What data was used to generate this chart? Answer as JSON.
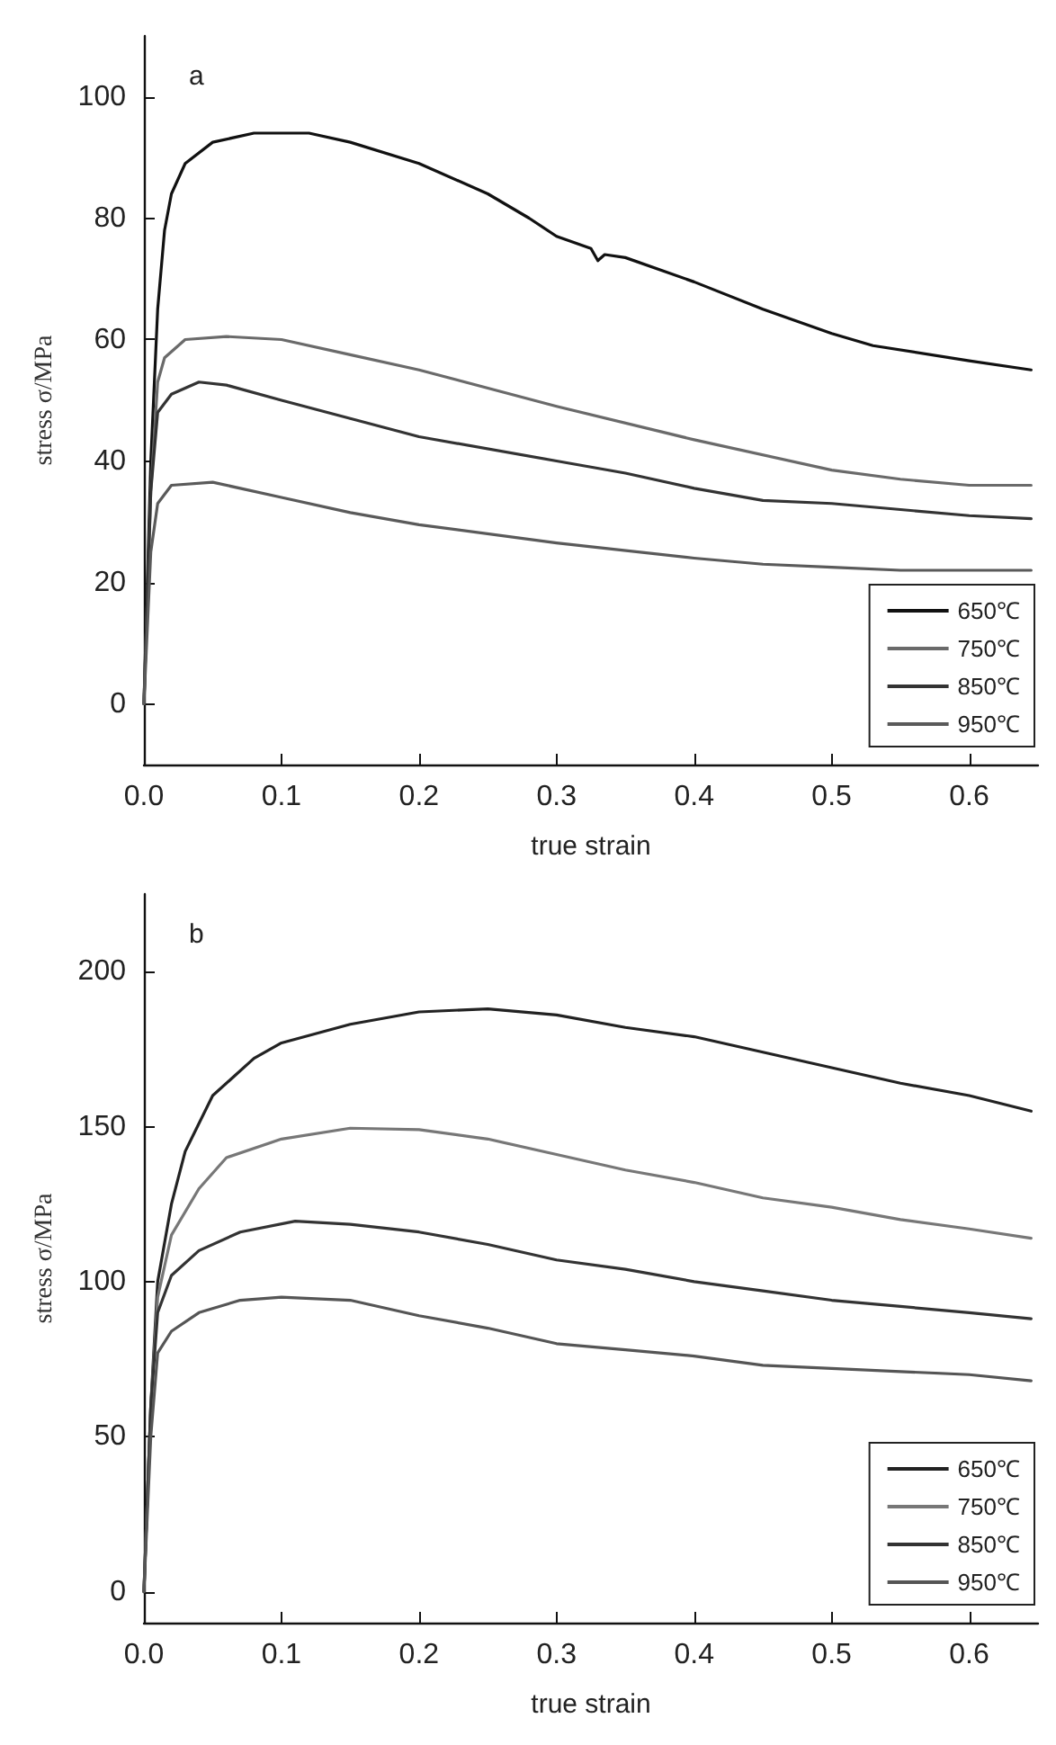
{
  "chart_data": [
    {
      "type": "line",
      "title": "a",
      "xlabel": "true strain",
      "ylabel": "stress σ/MPa",
      "xlim": [
        0,
        0.65
      ],
      "ylim": [
        -10,
        110
      ],
      "xticks": [
        {
          "value": 0,
          "label": "0.0"
        },
        0.1,
        0.2,
        0.3,
        0.4,
        0.5,
        0.6
      ],
      "yticks": [
        0,
        20,
        40,
        60,
        80,
        100
      ],
      "legend": "bottom right",
      "series": [
        {
          "name": "650℃",
          "color": "#111111",
          "x": [
            0,
            0.005,
            0.01,
            0.015,
            0.02,
            0.03,
            0.05,
            0.08,
            0.12,
            0.15,
            0.2,
            0.25,
            0.28,
            0.3,
            0.325,
            0.33,
            0.335,
            0.35,
            0.4,
            0.45,
            0.5,
            0.53,
            0.6,
            0.645
          ],
          "values": [
            0,
            40,
            65,
            78,
            84,
            89,
            92.5,
            94,
            94,
            92.5,
            89,
            84,
            80,
            77,
            75,
            73,
            74,
            73.5,
            69.5,
            65,
            61,
            59,
            56.5,
            55
          ]
        },
        {
          "name": "750℃",
          "color": "#6a6a6a",
          "x": [
            0,
            0.005,
            0.01,
            0.015,
            0.03,
            0.06,
            0.1,
            0.15,
            0.2,
            0.3,
            0.4,
            0.5,
            0.55,
            0.6,
            0.645
          ],
          "values": [
            0,
            35,
            53,
            57,
            60,
            60.5,
            60,
            57.5,
            55,
            49,
            43.5,
            38.5,
            37,
            36,
            36
          ]
        },
        {
          "name": "850℃",
          "color": "#333333",
          "x": [
            0,
            0.005,
            0.01,
            0.02,
            0.04,
            0.06,
            0.1,
            0.15,
            0.2,
            0.3,
            0.35,
            0.4,
            0.45,
            0.5,
            0.55,
            0.6,
            0.645
          ],
          "values": [
            0,
            35,
            48,
            51,
            53,
            52.5,
            50,
            47,
            44,
            40,
            38,
            35.5,
            33.5,
            33,
            32,
            31,
            30.5
          ]
        },
        {
          "name": "950℃",
          "color": "#5a5a5a",
          "x": [
            0,
            0.005,
            0.01,
            0.02,
            0.05,
            0.1,
            0.15,
            0.2,
            0.3,
            0.4,
            0.45,
            0.5,
            0.55,
            0.6,
            0.645
          ],
          "values": [
            0,
            25,
            33,
            36,
            36.5,
            34,
            31.5,
            29.5,
            26.5,
            24,
            23,
            22.5,
            22,
            22,
            22
          ]
        }
      ]
    },
    {
      "type": "line",
      "title": "b",
      "xlabel": "true strain",
      "ylabel": "stress σ/MPa",
      "xlim": [
        0,
        0.65
      ],
      "ylim": [
        -10,
        225
      ],
      "xticks": [
        {
          "value": 0,
          "label": "0.0"
        },
        0.1,
        0.2,
        0.3,
        0.4,
        0.5,
        0.6
      ],
      "yticks": [
        0,
        50,
        100,
        150,
        200
      ],
      "legend": "bottom right",
      "series": [
        {
          "name": "650℃",
          "color": "#222222",
          "x": [
            0,
            0.005,
            0.01,
            0.02,
            0.03,
            0.05,
            0.08,
            0.1,
            0.15,
            0.2,
            0.25,
            0.3,
            0.35,
            0.4,
            0.45,
            0.5,
            0.55,
            0.6,
            0.645
          ],
          "values": [
            0,
            60,
            100,
            125,
            142,
            160,
            172,
            177,
            183,
            187,
            188,
            186,
            182,
            179,
            174,
            169,
            164,
            160,
            155
          ]
        },
        {
          "name": "750℃",
          "color": "#777777",
          "x": [
            0,
            0.005,
            0.01,
            0.02,
            0.04,
            0.06,
            0.1,
            0.15,
            0.2,
            0.25,
            0.3,
            0.35,
            0.4,
            0.45,
            0.5,
            0.55,
            0.6,
            0.645
          ],
          "values": [
            0,
            60,
            95,
            115,
            130,
            140,
            146,
            149.5,
            149,
            146,
            141,
            136,
            132,
            127,
            124,
            120,
            117,
            114
          ]
        },
        {
          "name": "850℃",
          "color": "#333333",
          "x": [
            0,
            0.005,
            0.01,
            0.02,
            0.04,
            0.07,
            0.11,
            0.15,
            0.2,
            0.25,
            0.3,
            0.35,
            0.4,
            0.45,
            0.5,
            0.55,
            0.6,
            0.645
          ],
          "values": [
            0,
            60,
            90,
            102,
            110,
            116,
            119.5,
            118.5,
            116,
            112,
            107,
            104,
            100,
            97,
            94,
            92,
            90,
            88
          ]
        },
        {
          "name": "950℃",
          "color": "#555555",
          "x": [
            0,
            0.005,
            0.01,
            0.02,
            0.04,
            0.07,
            0.1,
            0.15,
            0.2,
            0.25,
            0.3,
            0.35,
            0.4,
            0.45,
            0.5,
            0.55,
            0.6,
            0.645
          ],
          "values": [
            0,
            50,
            77,
            84,
            90,
            94,
            95,
            94,
            89,
            85,
            80,
            78,
            76,
            73,
            72,
            71,
            70,
            68
          ]
        }
      ]
    }
  ]
}
